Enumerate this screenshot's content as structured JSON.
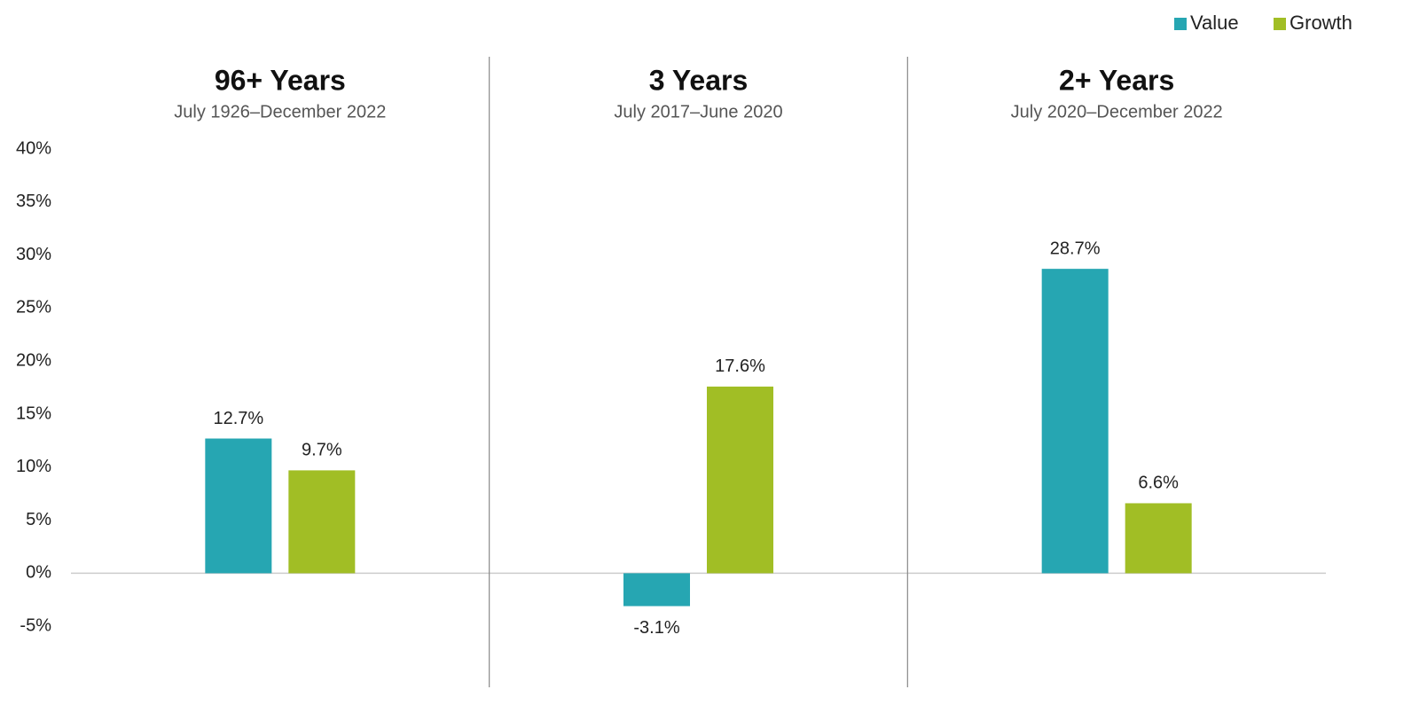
{
  "chart_data": {
    "type": "bar",
    "categories": [
      "96+ Years",
      "3 Years",
      "2+ Years"
    ],
    "subtitles": [
      "July 1926–December 2022",
      "July 2017–June 2020",
      "July 2020–December 2022"
    ],
    "series": [
      {
        "name": "Value",
        "color": "#26a6b2",
        "values": [
          12.7,
          -3.1,
          28.7
        ],
        "value_labels": [
          "12.7%",
          "-3.1%",
          "28.7%"
        ]
      },
      {
        "name": "Growth",
        "color": "#a1be25",
        "values": [
          9.7,
          17.6,
          6.6
        ],
        "value_labels": [
          "9.7%",
          "17.6%",
          "6.6%"
        ]
      }
    ],
    "ylim": [
      -10,
      40
    ],
    "yticks": [
      {
        "value": -5,
        "label": "-5%"
      },
      {
        "value": 0,
        "label": "0%"
      },
      {
        "value": 5,
        "label": "5%"
      },
      {
        "value": 10,
        "label": "10%"
      },
      {
        "value": 15,
        "label": "15%"
      },
      {
        "value": 20,
        "label": "20%"
      },
      {
        "value": 25,
        "label": "25%"
      },
      {
        "value": 30,
        "label": "30%"
      },
      {
        "value": 35,
        "label": "35%"
      },
      {
        "value": 40,
        "label": "40%"
      }
    ],
    "grid": false,
    "legend": "top-right"
  }
}
